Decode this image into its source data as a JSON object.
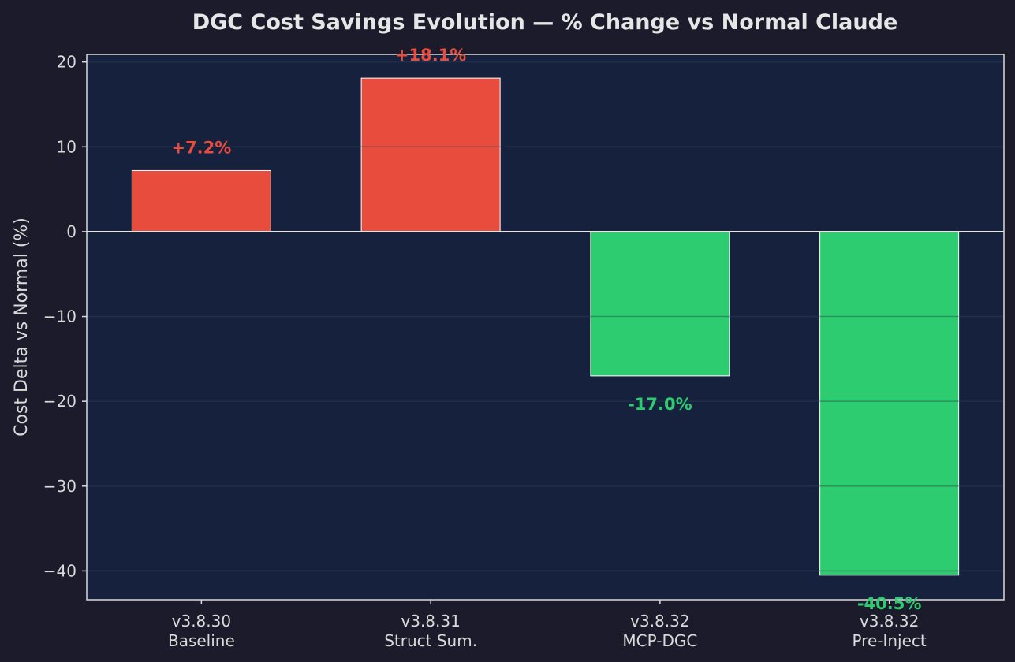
{
  "colors": {
    "page_background": "#1b1b2c",
    "plot_background": "#16213e",
    "axis": "#dadada",
    "grid": "#25304c",
    "positive": "#e74c3c",
    "negative": "#2ecc71",
    "bar_edge": "#ffffff",
    "title": "#e6e6e6"
  },
  "chart_data": {
    "type": "bar",
    "title": "DGC Cost Savings Evolution — % Change vs Normal Claude",
    "xlabel": "",
    "ylabel": "Cost Delta vs Normal (%)",
    "ylim": [
      -43.4,
      20.9
    ],
    "yticks": [
      20,
      10,
      0,
      -10,
      -20,
      -30,
      -40
    ],
    "ytick_labels": [
      "20",
      "10",
      "0",
      "−10",
      "−20",
      "−30",
      "−40"
    ],
    "grid": true,
    "categories": [
      {
        "version": "v3.8.30",
        "name": "Baseline"
      },
      {
        "version": "v3.8.31",
        "name": "Struct Sum."
      },
      {
        "version": "v3.8.32",
        "name": "MCP-DGC"
      },
      {
        "version": "v3.8.32",
        "name": "Pre-Inject"
      }
    ],
    "values": [
      7.2,
      18.1,
      -17.0,
      -40.5
    ],
    "value_labels": [
      "+7.2%",
      "+18.1%",
      "-17.0%",
      "-40.5%"
    ]
  }
}
